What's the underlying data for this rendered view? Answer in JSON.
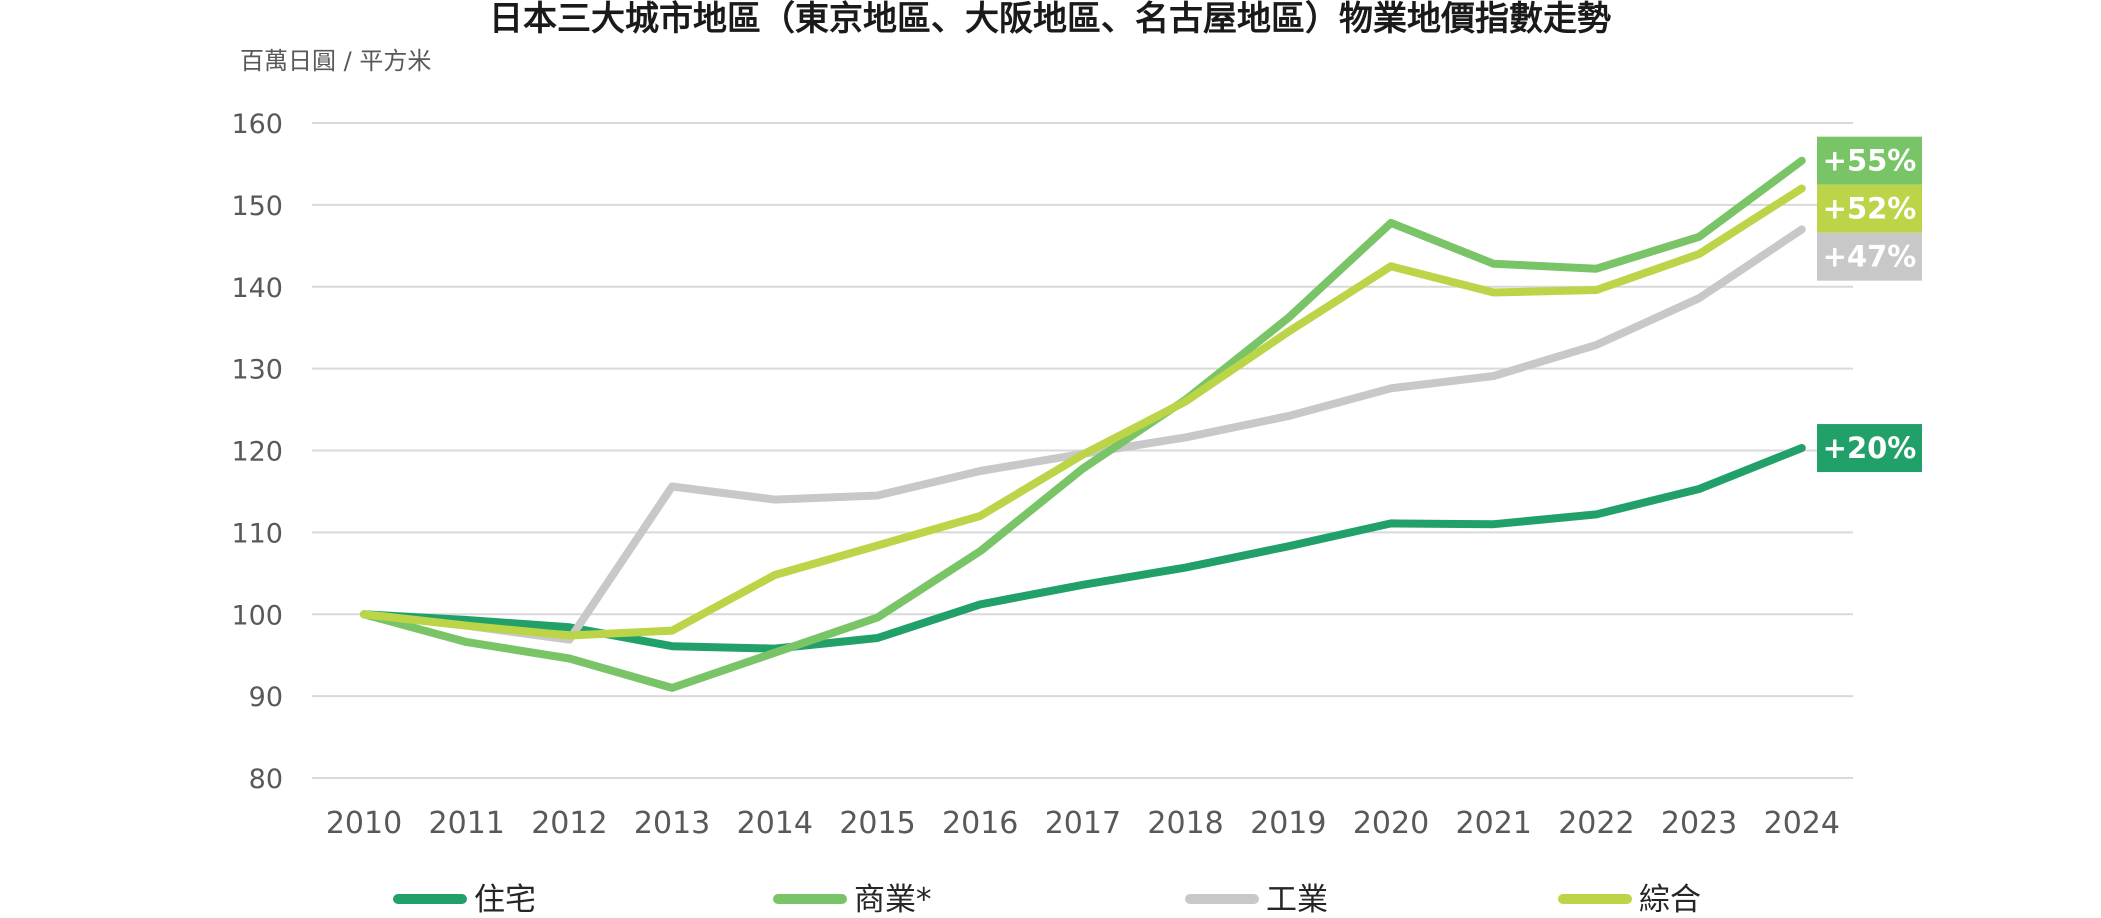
{
  "chart_data": {
    "type": "line",
    "title": "日本三大城市地區（東京地區、大阪地區、名古屋地區）物業地價指數走勢",
    "ylabel": "百萬日圓 / 平方米",
    "xlabel": "",
    "ylim": [
      80,
      160
    ],
    "yticks": [
      80,
      90,
      100,
      110,
      120,
      130,
      140,
      150,
      160
    ],
    "x": [
      "2010",
      "2011",
      "2012",
      "2013",
      "2014",
      "2015",
      "2016",
      "2017",
      "2018",
      "2019",
      "2020",
      "2021",
      "2022",
      "2023",
      "2024"
    ],
    "grid": true,
    "legend_position": "bottom",
    "series": [
      {
        "name": "住宅",
        "color": "#21a06a",
        "values": [
          100,
          99.3,
          98.4,
          96.1,
          95.8,
          97.1,
          101.2,
          103.6,
          105.7,
          108.3,
          111.1,
          111.0,
          112.2,
          115.3,
          120.3
        ],
        "badge": "+20%",
        "badge_color": "#21a06a"
      },
      {
        "name": "商業*",
        "color": "#79c466",
        "values": [
          100,
          96.6,
          94.6,
          91.0,
          95.3,
          99.6,
          107.7,
          117.8,
          126.2,
          136.2,
          147.8,
          142.8,
          142.2,
          146.1,
          155.4
        ],
        "badge": "+55%",
        "badge_color": "#79c466"
      },
      {
        "name": "工業",
        "color": "#c8c8c8",
        "values": [
          100,
          98.6,
          96.9,
          115.6,
          114.0,
          114.5,
          117.5,
          119.6,
          121.6,
          124.2,
          127.6,
          129.1,
          132.9,
          138.6,
          147.0
        ],
        "badge": "+47%",
        "badge_color": "#c8c8c8"
      },
      {
        "name": "綜合",
        "color": "#bcd448",
        "values": [
          100,
          98.6,
          97.4,
          98.0,
          104.8,
          108.4,
          112.0,
          119.5,
          126.0,
          134.5,
          142.5,
          139.3,
          139.6,
          144.0,
          152.0
        ],
        "badge": "+52%",
        "badge_color": "#bcd448"
      }
    ]
  }
}
